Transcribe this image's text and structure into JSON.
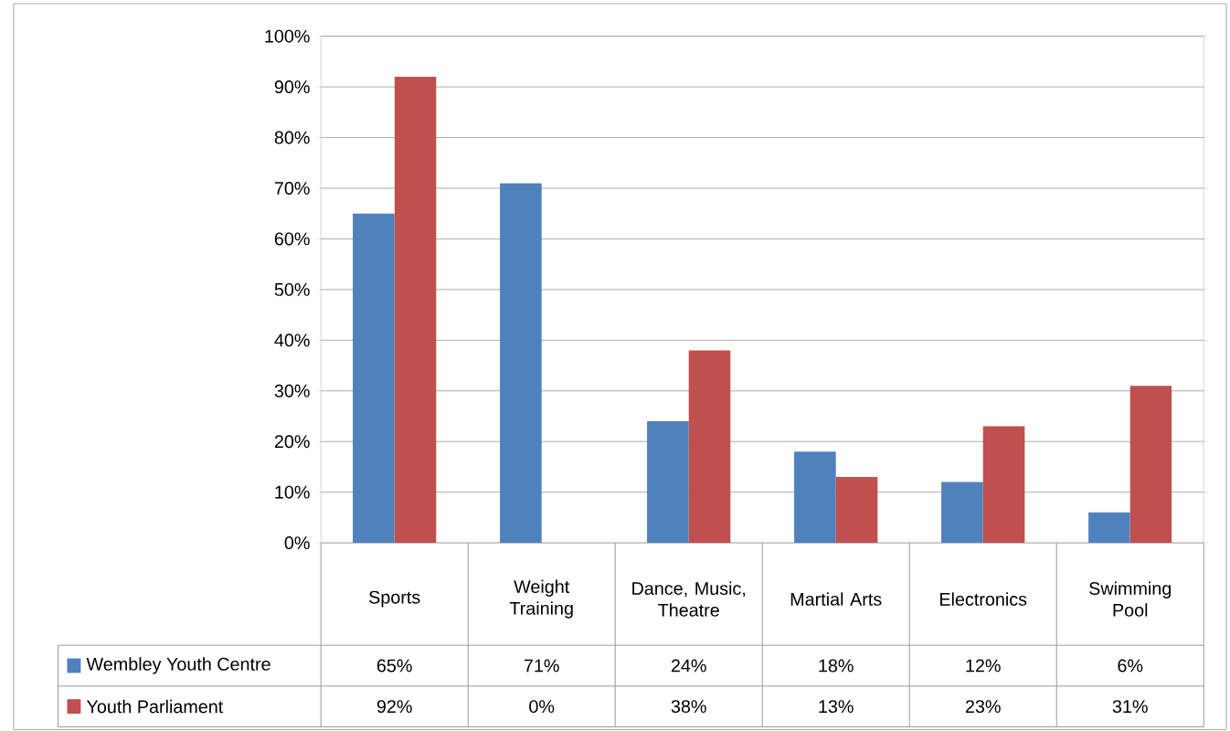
{
  "chart_data": {
    "type": "bar",
    "categories": [
      "Sports",
      "Weight Training",
      "Dance, Music, Theatre",
      "Martial Arts",
      "Electronics",
      "Swimming Pool"
    ],
    "series": [
      {
        "name": "Wembley Youth Centre",
        "color": "#4f81bd",
        "values": [
          65,
          71,
          24,
          18,
          12,
          6
        ],
        "value_labels": [
          "65%",
          "71%",
          "24%",
          "18%",
          "12%",
          "6%"
        ]
      },
      {
        "name": "Youth Parliament",
        "color": "#c0504d",
        "values": [
          92,
          0,
          38,
          13,
          23,
          31
        ],
        "value_labels": [
          "92%",
          "0%",
          "38%",
          "13%",
          "23%",
          "31%"
        ]
      }
    ],
    "ylim": [
      0,
      100
    ],
    "yticks": [
      {
        "value": 0,
        "label": "0%"
      },
      {
        "value": 10,
        "label": "10%"
      },
      {
        "value": 20,
        "label": "20%"
      },
      {
        "value": 30,
        "label": "30%"
      },
      {
        "value": 40,
        "label": "40%"
      },
      {
        "value": 50,
        "label": "50%"
      },
      {
        "value": 60,
        "label": "60%"
      },
      {
        "value": 70,
        "label": "70%"
      },
      {
        "value": 80,
        "label": "80%"
      },
      {
        "value": 90,
        "label": "90%"
      },
      {
        "value": 100,
        "label": "100%"
      }
    ],
    "grid": "y",
    "legend": "bottom left"
  }
}
